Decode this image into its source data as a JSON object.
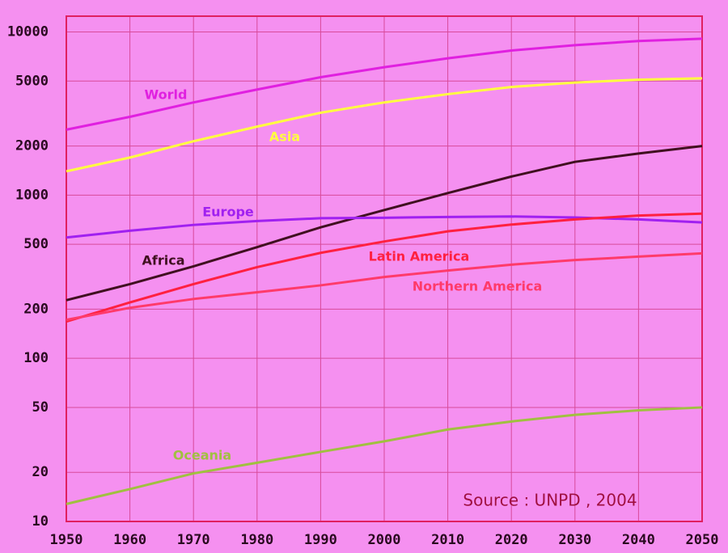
{
  "chart_data": {
    "type": "line",
    "log_y": true,
    "grid": true,
    "x": [
      1950,
      1960,
      1970,
      1980,
      1990,
      2000,
      2010,
      2020,
      2030,
      2040,
      2050
    ],
    "xlim": [
      1950,
      2050
    ],
    "xticks": [
      1950,
      1960,
      1970,
      1980,
      1990,
      2000,
      2010,
      2020,
      2030,
      2040,
      2050
    ],
    "ylim": [
      10,
      12500
    ],
    "yticks": [
      10,
      20,
      50,
      100,
      200,
      500,
      1000,
      2000,
      5000,
      10000
    ],
    "series": [
      {
        "name": "World",
        "color": "#e020e0",
        "values": [
          2520,
          3020,
          3700,
          4440,
          5280,
          6080,
          6900,
          7700,
          8300,
          8800,
          9100
        ]
      },
      {
        "name": "Asia",
        "color": "#ffff40",
        "values": [
          1400,
          1700,
          2140,
          2630,
          3200,
          3700,
          4160,
          4600,
          4900,
          5100,
          5200
        ]
      },
      {
        "name": "Africa",
        "color": "#401020",
        "values": [
          227,
          285,
          366,
          480,
          635,
          810,
          1030,
          1300,
          1600,
          1800,
          2000
        ]
      },
      {
        "name": "Europe",
        "color": "#a020f0",
        "values": [
          550,
          605,
          657,
          694,
          722,
          727,
          735,
          740,
          730,
          710,
          680
        ]
      },
      {
        "name": "Latin America",
        "color": "#ff2040",
        "values": [
          168,
          220,
          285,
          362,
          443,
          520,
          600,
          660,
          710,
          750,
          770
        ]
      },
      {
        "name": "Northern America",
        "color": "#ff3a6a",
        "values": [
          172,
          204,
          231,
          254,
          280,
          315,
          345,
          375,
          400,
          420,
          440
        ]
      },
      {
        "name": "Oceania",
        "color": "#a0c040",
        "values": [
          12.8,
          15.8,
          19.7,
          22.9,
          26.7,
          31,
          36.6,
          41,
          45,
          48,
          50
        ]
      }
    ],
    "annotation": "Source : UNPD , 2004"
  }
}
